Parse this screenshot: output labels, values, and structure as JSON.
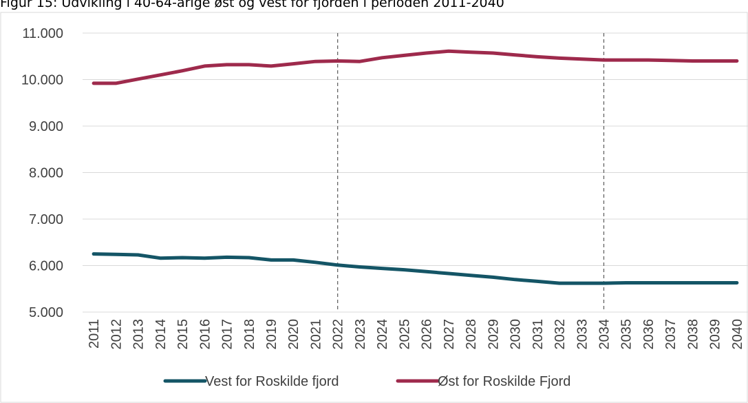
{
  "caption": "Figur 15: Udvikling i 40-64-årige øst og vest for fjorden i perioden 2011-2040",
  "colors": {
    "vest": "#145566",
    "ost": "#9e2a4c",
    "grid": "#d9d9d9",
    "divider": "#595959"
  },
  "chart_data": {
    "type": "line",
    "title": "Figur 15: Udvikling i 40-64-årige øst og vest for fjorden i perioden 2011-2040",
    "xlabel": "",
    "ylabel": "",
    "ylim": [
      5000,
      11000
    ],
    "yticks": [
      "5.000",
      "6.000",
      "7.000",
      "8.000",
      "9.000",
      "10.000",
      "11.000"
    ],
    "grid": true,
    "legend": "bottom",
    "categories": [
      "2011",
      "2012",
      "2013",
      "2014",
      "2015",
      "2016",
      "2017",
      "2018",
      "2019",
      "2020",
      "2021",
      "2022",
      "2023",
      "2024",
      "2025",
      "2026",
      "2027",
      "2028",
      "2029",
      "2030",
      "2031",
      "2032",
      "2033",
      "2034",
      "2035",
      "2036",
      "2037",
      "2038",
      "2039",
      "2040"
    ],
    "vertical_markers": [
      "2022",
      "2034"
    ],
    "series": [
      {
        "name": "Vest for Roskilde fjord",
        "color_key": "vest",
        "values": [
          6250,
          6240,
          6230,
          6160,
          6170,
          6160,
          6180,
          6170,
          6120,
          6120,
          6070,
          6010,
          5970,
          5940,
          5910,
          5870,
          5830,
          5790,
          5750,
          5700,
          5660,
          5620,
          5620,
          5620,
          5630,
          5630,
          5630,
          5630,
          5630,
          5630
        ]
      },
      {
        "name": "Øst for Roskilde Fjord",
        "color_key": "ost",
        "values": [
          9920,
          9920,
          10010,
          10100,
          10190,
          10290,
          10320,
          10320,
          10290,
          10340,
          10390,
          10400,
          10390,
          10470,
          10520,
          10570,
          10610,
          10590,
          10570,
          10530,
          10490,
          10460,
          10440,
          10420,
          10420,
          10420,
          10410,
          10400,
          10400,
          10400
        ]
      }
    ]
  }
}
